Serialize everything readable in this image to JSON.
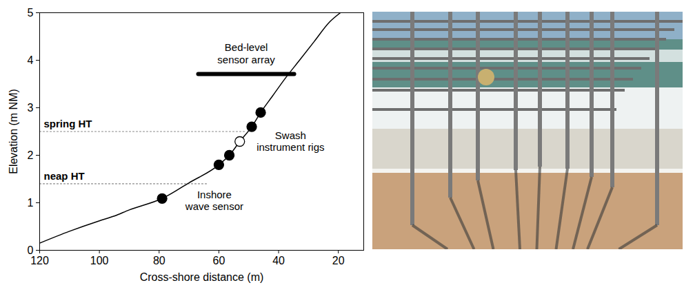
{
  "chart_data": {
    "type": "line",
    "x_label": "Cross-shore distance (m)",
    "y_label": "Elevation (m NM)",
    "xlim": [
      120,
      11.5
    ],
    "ylim": [
      0,
      5
    ],
    "xticks": [
      120,
      100,
      80,
      60,
      40,
      20
    ],
    "yticks": [
      0,
      1,
      2,
      3,
      4,
      5
    ],
    "grid": false,
    "series": [
      {
        "type": "line",
        "color": "#000000",
        "line_style": "solid",
        "x": [
          120,
          110,
          100,
          95,
          90,
          79,
          70,
          60,
          56.5,
          53,
          49,
          46,
          42,
          38,
          33,
          28,
          23,
          19.3
        ],
        "values": [
          0.15,
          0.4,
          0.62,
          0.72,
          0.85,
          1.09,
          1.42,
          1.8,
          2.0,
          2.29,
          2.6,
          2.9,
          3.25,
          3.6,
          4.0,
          4.4,
          4.8,
          5.0
        ]
      },
      {
        "type": "scatter",
        "color": "#000000",
        "marker": "circle",
        "x": [
          79,
          60,
          56.5,
          49,
          46
        ],
        "values": [
          1.09,
          1.8,
          2.0,
          2.6,
          2.9
        ]
      },
      {
        "type": "scatter",
        "color": "#000000",
        "marker": "open_circle",
        "x": [
          53
        ],
        "values": [
          2.29
        ]
      }
    ],
    "reference_lines": [
      {
        "label": "spring HT",
        "y": 2.5,
        "x": [
          120,
          51
        ],
        "color": "#888888",
        "line_style": "dotted"
      },
      {
        "label": "neap HT",
        "y": 1.4,
        "x": [
          120,
          64
        ],
        "color": "#888888",
        "line_style": "dotted"
      }
    ],
    "segments": [
      {
        "label": "Bed-level sensor array",
        "x": [
          66.9,
          34.8
        ],
        "y": 3.71,
        "color": "#000000"
      }
    ],
    "annotations": [
      {
        "text": "Swash instrument rigs",
        "x": 36,
        "y": 2.3
      },
      {
        "text": "Inshore wave sensor",
        "x": 61.5,
        "y": 1.05
      }
    ]
  }
}
